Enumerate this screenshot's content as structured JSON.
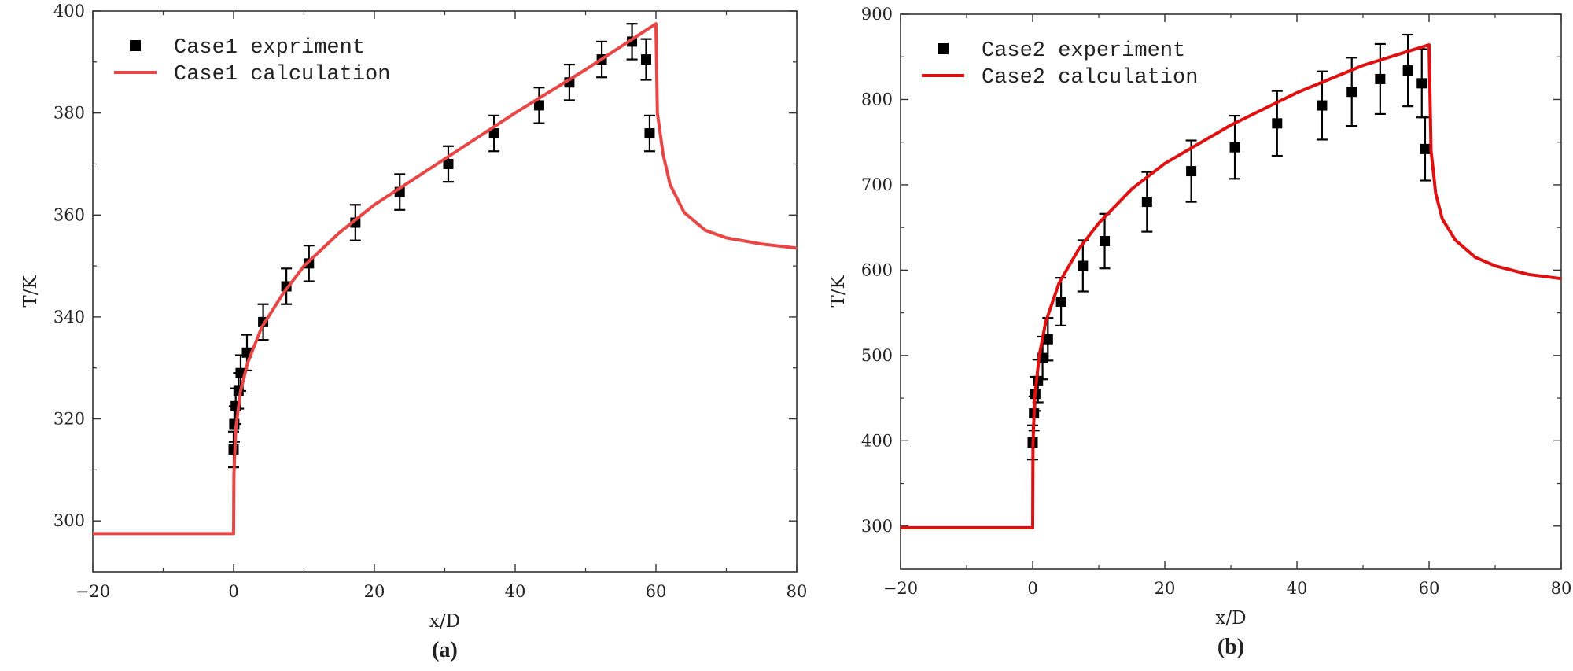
{
  "chart_data": [
    {
      "type": "line",
      "panel_label": "(a)",
      "xlabel": "x/D",
      "ylabel": "T/K",
      "xlim": [
        -20,
        80
      ],
      "ylim": [
        290,
        400
      ],
      "xticks": [
        -20,
        0,
        20,
        40,
        60,
        80
      ],
      "xtick_labels": [
        "−20",
        "0",
        "20",
        "40",
        "60",
        "80"
      ],
      "yticks": [
        300,
        320,
        340,
        360,
        380,
        400
      ],
      "ytick_labels": [
        "300",
        "320",
        "340",
        "360",
        "380",
        "400"
      ],
      "legend_position": "top-left",
      "series": [
        {
          "name": "Case1 expriment",
          "kind": "scatter",
          "marker": "square",
          "color": "#000000",
          "x": [
            0.0,
            0.1,
            0.3,
            0.7,
            1.0,
            1.9,
            4.2,
            7.5,
            10.7,
            17.3,
            23.6,
            30.5,
            37.0,
            43.4,
            47.7,
            52.3,
            56.6,
            58.6,
            59.1
          ],
          "y": [
            314.0,
            319.0,
            322.5,
            325.5,
            329.0,
            333.0,
            339.0,
            346.0,
            350.5,
            358.5,
            364.5,
            370.0,
            376.0,
            381.5,
            386.0,
            390.5,
            394.0,
            390.5,
            376.0
          ],
          "err": [
            3.5,
            3.5,
            3.5,
            3.5,
            3.5,
            3.5,
            3.5,
            3.5,
            3.5,
            3.5,
            3.5,
            3.5,
            3.5,
            3.5,
            3.5,
            3.5,
            3.5,
            4.0,
            3.5
          ]
        },
        {
          "name": "Case1 calculation",
          "kind": "line",
          "color": "#e84545",
          "x": [
            -20,
            0,
            0.05,
            0.3,
            1,
            2,
            4,
            7,
            10,
            15,
            20,
            30,
            40,
            50,
            60,
            60.2,
            61,
            62,
            64,
            67,
            70,
            75,
            80
          ],
          "y": [
            297.5,
            297.5,
            309.0,
            318.0,
            325.5,
            331.0,
            338.0,
            344.5,
            350.0,
            356.5,
            362.0,
            371.0,
            380.0,
            388.5,
            397.5,
            380.0,
            372.0,
            366.0,
            360.5,
            357.0,
            355.5,
            354.3,
            353.5
          ]
        }
      ]
    },
    {
      "type": "line",
      "panel_label": "(b)",
      "xlabel": "x/D",
      "ylabel": "T/K",
      "xlim": [
        -20,
        80
      ],
      "ylim": [
        250,
        900
      ],
      "xticks": [
        -20,
        0,
        20,
        40,
        60,
        80
      ],
      "xtick_labels": [
        "−20",
        "0",
        "20",
        "40",
        "60",
        "80"
      ],
      "yticks": [
        300,
        400,
        500,
        600,
        700,
        800,
        900
      ],
      "ytick_labels": [
        "300",
        "400",
        "500",
        "600",
        "700",
        "800",
        "900"
      ],
      "legend_position": "top-left",
      "series": [
        {
          "name": "Case2 experiment",
          "kind": "scatter",
          "marker": "square",
          "color": "#000000",
          "x": [
            0.0,
            0.2,
            0.4,
            0.8,
            1.5,
            2.3,
            4.3,
            7.6,
            10.9,
            17.3,
            24.0,
            30.6,
            37.0,
            43.8,
            48.3,
            52.6,
            56.8,
            58.9,
            59.4
          ],
          "y": [
            398,
            432,
            455,
            470,
            497,
            519,
            563,
            605,
            634,
            680,
            716,
            744,
            772,
            793,
            809,
            824,
            834,
            819,
            742
          ],
          "err": [
            20,
            20,
            20,
            25,
            25,
            25,
            28,
            30,
            32,
            35,
            36,
            37,
            38,
            40,
            40,
            41,
            42,
            40,
            37
          ]
        },
        {
          "name": "Case2 calculation",
          "kind": "line",
          "color": "#e01010",
          "x": [
            -20,
            0,
            0.05,
            0.3,
            1,
            2,
            4,
            7,
            10,
            15,
            20,
            30,
            40,
            50,
            60,
            60.3,
            61,
            62,
            64,
            67,
            70,
            75,
            80
          ],
          "y": [
            298,
            298,
            395,
            450,
            500,
            540,
            585,
            625,
            655,
            695,
            725,
            770,
            808,
            840,
            864,
            740,
            690,
            660,
            635,
            615,
            605,
            595,
            590
          ]
        }
      ]
    }
  ]
}
